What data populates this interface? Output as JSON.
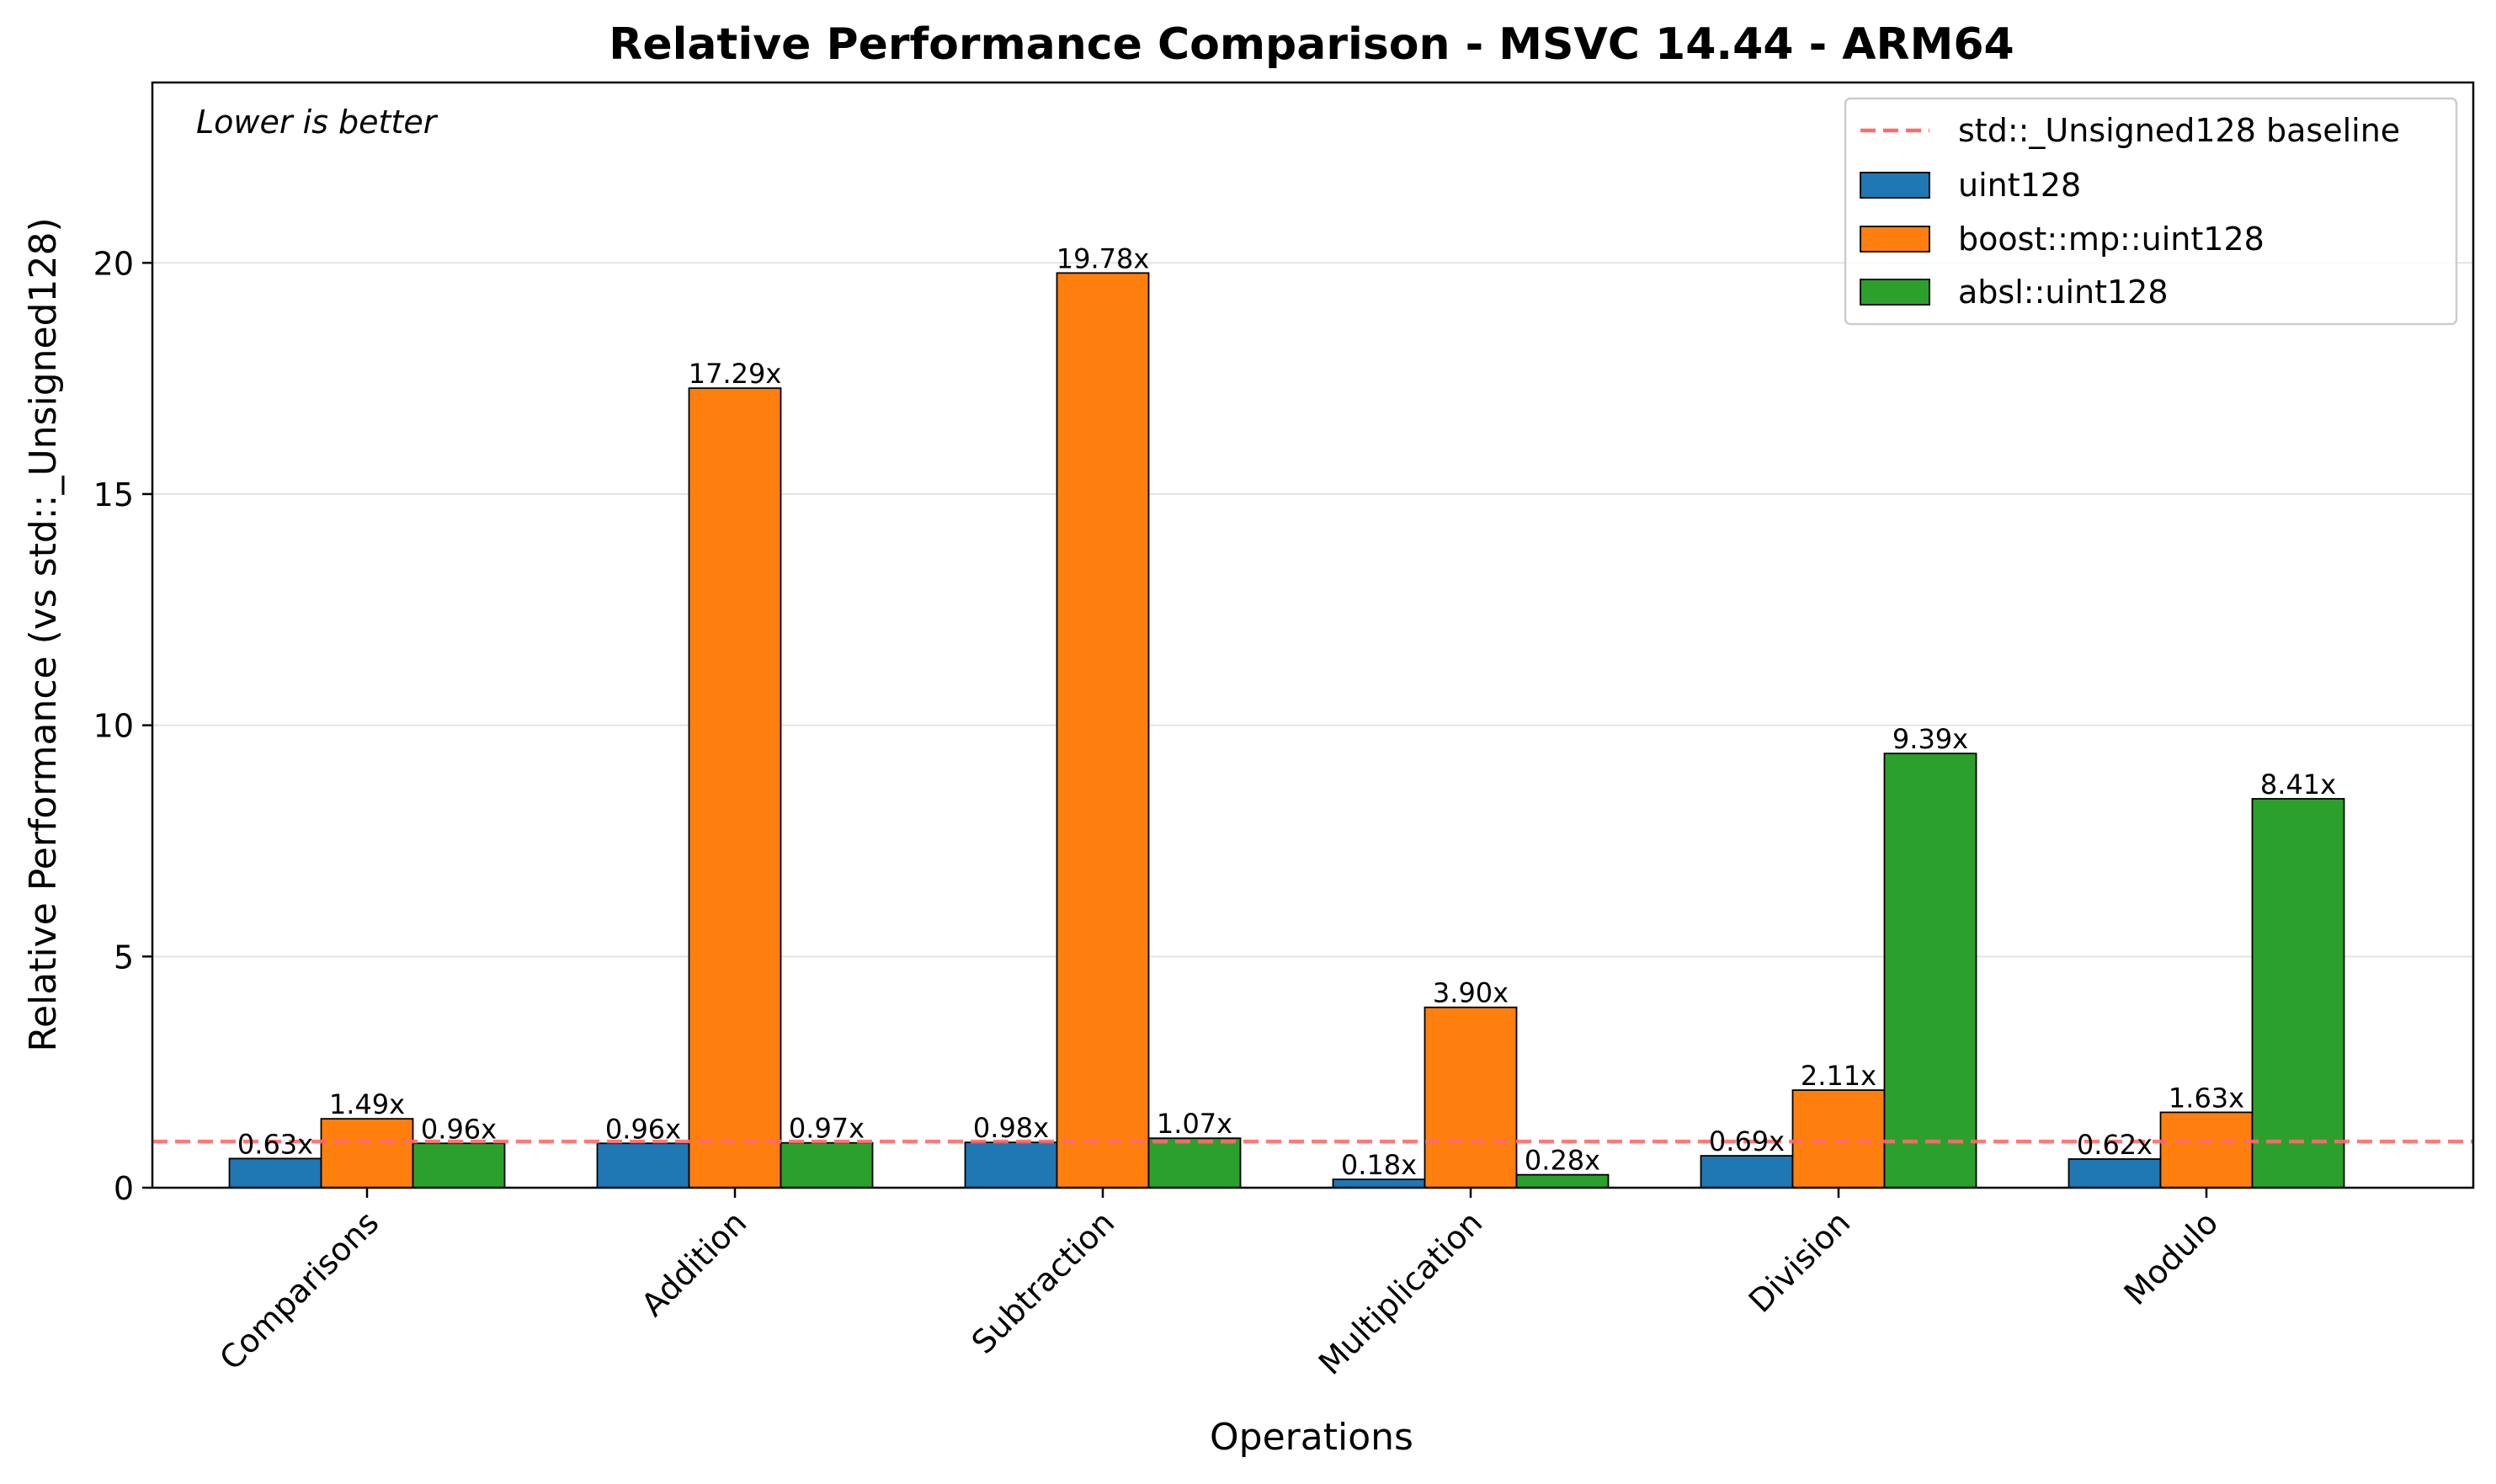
{
  "chart_data": {
    "type": "bar",
    "title": "Relative Performance Comparison - MSVC 14.44 - ARM64",
    "xlabel": "Operations",
    "ylabel": "Relative Performance (vs std::_Unsigned128)",
    "annotation": "Lower is better",
    "categories": [
      "Comparisons",
      "Addition",
      "Subtraction",
      "Multiplication",
      "Division",
      "Modulo"
    ],
    "series": [
      {
        "name": "uint128",
        "color": "#1f77b4",
        "values": [
          0.63,
          0.96,
          0.98,
          0.18,
          0.69,
          0.62
        ],
        "labels": [
          "0.63x",
          "0.96x",
          "0.98x",
          "0.18x",
          "0.69x",
          "0.62x"
        ]
      },
      {
        "name": "boost::mp::uint128",
        "color": "#ff7f0e",
        "values": [
          1.49,
          17.29,
          19.78,
          3.9,
          2.11,
          1.63
        ],
        "labels": [
          "1.49x",
          "17.29x",
          "19.78x",
          "3.90x",
          "2.11x",
          "1.63x"
        ]
      },
      {
        "name": "absl::uint128",
        "color": "#2ca02c",
        "values": [
          0.96,
          0.97,
          1.07,
          0.28,
          9.39,
          8.41
        ],
        "labels": [
          "0.96x",
          "0.97x",
          "1.07x",
          "0.28x",
          "9.39x",
          "8.41x"
        ]
      }
    ],
    "baseline": {
      "name": "std::_Unsigned128 baseline",
      "value": 1.0,
      "color": "#ff6b6b",
      "style": "dashed"
    },
    "ylim": [
      0,
      23.9
    ],
    "yticks": [
      0,
      5,
      10,
      15,
      20
    ],
    "ytick_labels": [
      "0",
      "5",
      "10",
      "15",
      "20"
    ],
    "grid": "horizontal",
    "legend_position": "top-right"
  }
}
